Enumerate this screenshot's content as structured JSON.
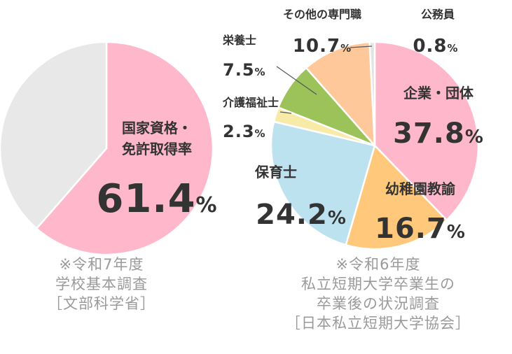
{
  "chart_data": [
    {
      "type": "pie",
      "slices": [
        {
          "label": "国家資格・\n免許取得率",
          "value": 61.4,
          "value_text": "61.4",
          "color": "#ffb8cb"
        },
        {
          "label": "",
          "value": 38.6,
          "value_text": "",
          "color": "#e8e8e8"
        }
      ],
      "unit": "%",
      "source_note": "※令和7年度\n学校基本調査\n［文部科学省］"
    },
    {
      "type": "pie",
      "slices": [
        {
          "label": "企業・団体",
          "value": 37.8,
          "value_text": "37.8",
          "color": "#ffb8cb"
        },
        {
          "label": "幼稚園教諭",
          "value": 16.7,
          "value_text": "16.7",
          "color": "#ffc87a"
        },
        {
          "label": "保育士",
          "value": 24.2,
          "value_text": "24.2",
          "color": "#bde2ef"
        },
        {
          "label": "介護福祉士",
          "value": 2.3,
          "value_text": "2.3",
          "color": "#f8eba8"
        },
        {
          "label": "栄養士",
          "value": 7.5,
          "value_text": "7.5",
          "color": "#9bc35a"
        },
        {
          "label": "その他の専門職",
          "value": 10.7,
          "value_text": "10.7",
          "color": "#ffc89a"
        },
        {
          "label": "公務員",
          "value": 0.8,
          "value_text": "0.8",
          "color": "#e3e3e3"
        }
      ],
      "unit": "%",
      "source_note": "※令和6年度\n私立短期大学卒業生の\n卒業後の状況調査\n［日本私立短期大学協会］"
    }
  ]
}
